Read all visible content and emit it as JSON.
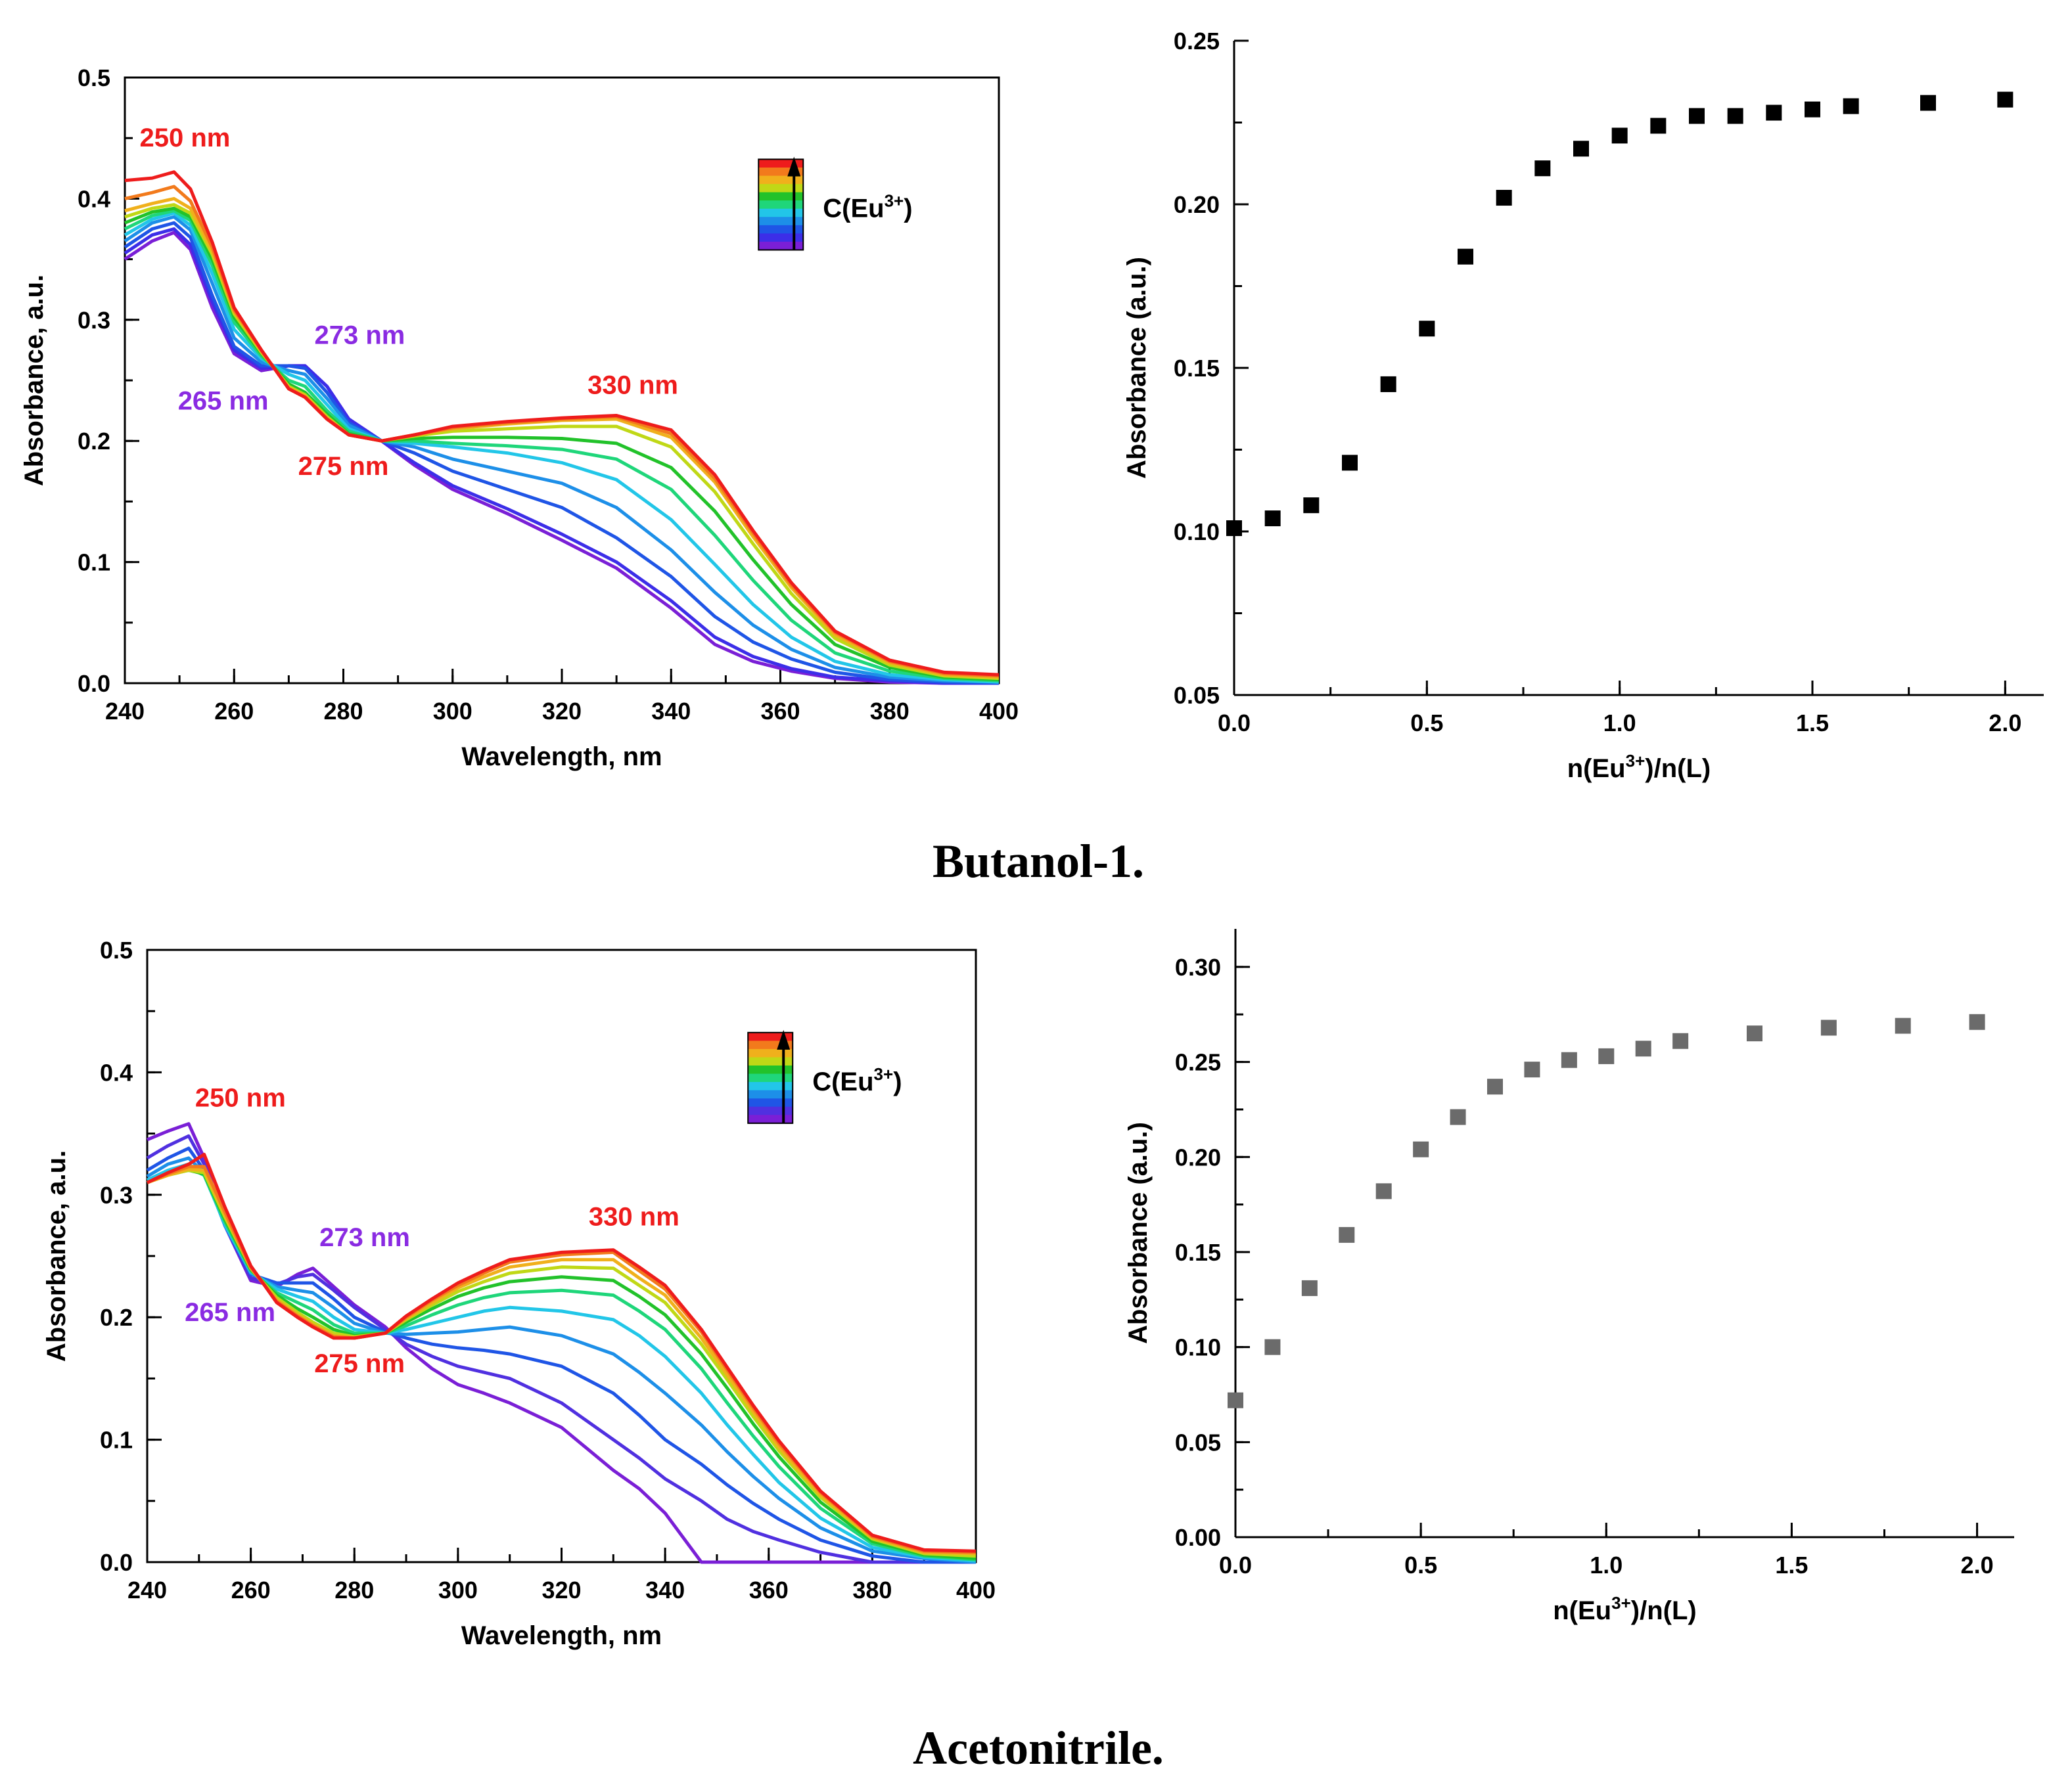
{
  "captions": [
    "Butanol-1.",
    "Acetonitrile."
  ],
  "chart_data": [
    {
      "id": "butanol-spectra",
      "type": "line",
      "xlabel": "Wavelength, nm",
      "ylabel": "Absorbance, a.u.",
      "xlim": [
        240,
        400
      ],
      "ylim": [
        0,
        0.5
      ],
      "xticks": [
        240,
        260,
        280,
        300,
        320,
        340,
        360,
        380,
        400
      ],
      "yticks": [
        0.0,
        0.1,
        0.2,
        0.3,
        0.4,
        0.5
      ],
      "legend": {
        "label": "C(Eu",
        "sup": "3+",
        "suffix": ")",
        "position": "top-right"
      },
      "annotations": [
        {
          "text": "250 nm",
          "x": 251,
          "y": 0.443,
          "color": "#ee1c1c"
        },
        {
          "text": "273 nm",
          "x": 283,
          "y": 0.28,
          "color": "#8a2be2"
        },
        {
          "text": "265 nm",
          "x": 258,
          "y": 0.226,
          "color": "#8a2be2"
        },
        {
          "text": "330 nm",
          "x": 333,
          "y": 0.239,
          "color": "#ee1c1c"
        },
        {
          "text": "275 nm",
          "x": 280,
          "y": 0.172,
          "color": "#ee1c1c"
        }
      ],
      "x": [
        240,
        245,
        249,
        252,
        256,
        260,
        265,
        270,
        273,
        277,
        281,
        287,
        293,
        300,
        310,
        320,
        330,
        340,
        348,
        355,
        362,
        370,
        380,
        390,
        400
      ],
      "series": [
        {
          "name": "c1",
          "color": "#7a1fd6",
          "values": [
            0.35,
            0.365,
            0.372,
            0.358,
            0.31,
            0.272,
            0.258,
            0.262,
            0.262,
            0.245,
            0.218,
            0.2,
            0.18,
            0.16,
            0.14,
            0.118,
            0.095,
            0.062,
            0.032,
            0.018,
            0.01,
            0.004,
            0.001,
            0.0,
            0.0
          ]
        },
        {
          "name": "c2",
          "color": "#3c2ee8",
          "values": [
            0.355,
            0.37,
            0.375,
            0.362,
            0.315,
            0.275,
            0.26,
            0.262,
            0.262,
            0.245,
            0.218,
            0.2,
            0.182,
            0.163,
            0.144,
            0.123,
            0.1,
            0.068,
            0.038,
            0.022,
            0.012,
            0.005,
            0.002,
            0.0,
            0.0
          ]
        },
        {
          "name": "c3",
          "color": "#1f55e6",
          "values": [
            0.36,
            0.375,
            0.38,
            0.368,
            0.32,
            0.278,
            0.262,
            0.262,
            0.26,
            0.24,
            0.215,
            0.2,
            0.19,
            0.175,
            0.16,
            0.145,
            0.12,
            0.088,
            0.055,
            0.034,
            0.02,
            0.009,
            0.003,
            0.001,
            0.0
          ]
        },
        {
          "name": "c4",
          "color": "#1d8fe8",
          "values": [
            0.365,
            0.38,
            0.385,
            0.374,
            0.33,
            0.285,
            0.265,
            0.258,
            0.255,
            0.235,
            0.213,
            0.2,
            0.195,
            0.185,
            0.175,
            0.165,
            0.145,
            0.11,
            0.075,
            0.048,
            0.028,
            0.013,
            0.005,
            0.002,
            0.001
          ]
        },
        {
          "name": "c5",
          "color": "#22c6e8",
          "values": [
            0.37,
            0.383,
            0.388,
            0.378,
            0.338,
            0.292,
            0.268,
            0.255,
            0.25,
            0.23,
            0.21,
            0.2,
            0.198,
            0.195,
            0.19,
            0.182,
            0.168,
            0.135,
            0.098,
            0.065,
            0.038,
            0.018,
            0.007,
            0.003,
            0.001
          ]
        },
        {
          "name": "c6",
          "color": "#1fd67a",
          "values": [
            0.375,
            0.386,
            0.39,
            0.382,
            0.345,
            0.298,
            0.27,
            0.25,
            0.245,
            0.225,
            0.208,
            0.2,
            0.2,
            0.198,
            0.196,
            0.193,
            0.185,
            0.16,
            0.122,
            0.085,
            0.052,
            0.025,
            0.01,
            0.004,
            0.002
          ]
        },
        {
          "name": "c7",
          "color": "#22c22a",
          "values": [
            0.38,
            0.389,
            0.392,
            0.385,
            0.35,
            0.302,
            0.272,
            0.247,
            0.24,
            0.222,
            0.206,
            0.2,
            0.202,
            0.203,
            0.203,
            0.202,
            0.198,
            0.178,
            0.142,
            0.102,
            0.065,
            0.032,
            0.013,
            0.005,
            0.003
          ]
        },
        {
          "name": "c8",
          "color": "#c0d816",
          "values": [
            0.385,
            0.392,
            0.395,
            0.388,
            0.354,
            0.305,
            0.273,
            0.245,
            0.238,
            0.22,
            0.205,
            0.2,
            0.204,
            0.208,
            0.21,
            0.212,
            0.212,
            0.195,
            0.158,
            0.115,
            0.074,
            0.037,
            0.015,
            0.006,
            0.004
          ]
        },
        {
          "name": "c9",
          "color": "#f0b01c",
          "values": [
            0.39,
            0.396,
            0.4,
            0.392,
            0.357,
            0.307,
            0.274,
            0.244,
            0.237,
            0.219,
            0.205,
            0.2,
            0.205,
            0.21,
            0.214,
            0.217,
            0.218,
            0.203,
            0.166,
            0.121,
            0.079,
            0.04,
            0.017,
            0.007,
            0.005
          ]
        },
        {
          "name": "c10",
          "color": "#f27a1c",
          "values": [
            0.4,
            0.405,
            0.41,
            0.398,
            0.36,
            0.308,
            0.275,
            0.243,
            0.236,
            0.218,
            0.205,
            0.2,
            0.205,
            0.211,
            0.215,
            0.218,
            0.22,
            0.206,
            0.169,
            0.124,
            0.081,
            0.042,
            0.018,
            0.008,
            0.006
          ]
        },
        {
          "name": "c11",
          "color": "#ee1c1c",
          "values": [
            0.415,
            0.417,
            0.422,
            0.408,
            0.364,
            0.31,
            0.275,
            0.243,
            0.236,
            0.218,
            0.205,
            0.2,
            0.205,
            0.212,
            0.216,
            0.219,
            0.221,
            0.209,
            0.172,
            0.126,
            0.083,
            0.043,
            0.019,
            0.009,
            0.007
          ]
        }
      ]
    },
    {
      "id": "butanol-titration",
      "type": "scatter",
      "xlabel": "n(Eu",
      "xlabel_sup": "3+",
      "xlabel_suffix": ")/n(L)",
      "ylabel": "Absorbance (a.u.)",
      "xlim": [
        0,
        2.1
      ],
      "ylim": [
        0.05,
        0.25
      ],
      "xticks": [
        0.0,
        0.5,
        1.0,
        1.5,
        2.0
      ],
      "yticks": [
        0.05,
        0.1,
        0.15,
        0.2,
        0.25
      ],
      "marker_color": "#000000",
      "x": [
        0.0,
        0.1,
        0.2,
        0.3,
        0.4,
        0.5,
        0.6,
        0.7,
        0.8,
        0.9,
        1.0,
        1.1,
        1.2,
        1.3,
        1.4,
        1.5,
        1.6,
        1.8,
        2.0
      ],
      "y": [
        0.101,
        0.104,
        0.108,
        0.121,
        0.145,
        0.162,
        0.184,
        0.202,
        0.211,
        0.217,
        0.221,
        0.224,
        0.227,
        0.227,
        0.228,
        0.229,
        0.23,
        0.231,
        0.232
      ]
    },
    {
      "id": "acetonitrile-spectra",
      "type": "line",
      "xlabel": "Wavelength, nm",
      "ylabel": "Absorbance, a.u.",
      "xlim": [
        240,
        400
      ],
      "ylim": [
        0,
        0.5
      ],
      "xticks": [
        240,
        260,
        280,
        300,
        320,
        340,
        360,
        380,
        400
      ],
      "yticks": [
        0.0,
        0.1,
        0.2,
        0.3,
        0.4,
        0.5
      ],
      "legend": {
        "label": "C(Eu",
        "sup": "3+",
        "suffix": ")",
        "position": "top-right"
      },
      "annotations": [
        {
          "text": "250 nm",
          "x": 258,
          "y": 0.372,
          "color": "#ee1c1c"
        },
        {
          "text": "273 nm",
          "x": 282,
          "y": 0.258,
          "color": "#8a2be2"
        },
        {
          "text": "265 nm",
          "x": 256,
          "y": 0.197,
          "color": "#8a2be2"
        },
        {
          "text": "330 nm",
          "x": 334,
          "y": 0.275,
          "color": "#ee1c1c"
        },
        {
          "text": "275 nm",
          "x": 281,
          "y": 0.155,
          "color": "#ee1c1c"
        }
      ],
      "x": [
        240,
        244,
        248,
        251,
        255,
        260,
        265,
        269,
        272,
        276,
        280,
        286,
        290,
        295,
        300,
        305,
        310,
        320,
        330,
        335,
        340,
        347,
        352,
        357,
        362,
        370,
        380,
        390,
        400
      ],
      "series": [
        {
          "name": "c1",
          "color": "#7a1fd6",
          "values": [
            0.345,
            0.352,
            0.358,
            0.33,
            0.275,
            0.23,
            0.225,
            0.235,
            0.24,
            0.225,
            0.21,
            0.192,
            0.175,
            0.158,
            0.145,
            0.138,
            0.13,
            0.11,
            0.075,
            0.06,
            0.04,
            0.0,
            0.0,
            0.0,
            0.0,
            0.0,
            0.0,
            0.0,
            0.0
          ]
        },
        {
          "name": "c2",
          "color": "#5030e0",
          "values": [
            0.33,
            0.34,
            0.348,
            0.325,
            0.275,
            0.232,
            0.227,
            0.233,
            0.235,
            0.222,
            0.208,
            0.19,
            0.178,
            0.168,
            0.16,
            0.155,
            0.15,
            0.13,
            0.1,
            0.085,
            0.068,
            0.05,
            0.035,
            0.025,
            0.018,
            0.008,
            0.0,
            0.0,
            0.0
          ]
        },
        {
          "name": "c3",
          "color": "#1f55e6",
          "values": [
            0.32,
            0.33,
            0.338,
            0.32,
            0.275,
            0.235,
            0.228,
            0.228,
            0.228,
            0.215,
            0.2,
            0.188,
            0.183,
            0.178,
            0.175,
            0.173,
            0.17,
            0.16,
            0.138,
            0.12,
            0.1,
            0.08,
            0.063,
            0.048,
            0.035,
            0.018,
            0.005,
            0.0,
            0.0
          ]
        },
        {
          "name": "c4",
          "color": "#1d8fe8",
          "values": [
            0.315,
            0.325,
            0.33,
            0.318,
            0.275,
            0.236,
            0.225,
            0.222,
            0.22,
            0.208,
            0.195,
            0.187,
            0.186,
            0.187,
            0.188,
            0.19,
            0.192,
            0.185,
            0.17,
            0.155,
            0.138,
            0.112,
            0.09,
            0.07,
            0.052,
            0.028,
            0.009,
            0.003,
            0.0
          ]
        },
        {
          "name": "c5",
          "color": "#22c6e8",
          "values": [
            0.312,
            0.32,
            0.325,
            0.316,
            0.276,
            0.237,
            0.223,
            0.217,
            0.213,
            0.2,
            0.19,
            0.187,
            0.19,
            0.195,
            0.2,
            0.205,
            0.208,
            0.205,
            0.198,
            0.185,
            0.168,
            0.138,
            0.112,
            0.088,
            0.065,
            0.036,
            0.012,
            0.004,
            0.001
          ]
        },
        {
          "name": "c6",
          "color": "#1fd67a",
          "values": [
            0.31,
            0.318,
            0.322,
            0.316,
            0.278,
            0.238,
            0.22,
            0.212,
            0.206,
            0.194,
            0.187,
            0.187,
            0.193,
            0.202,
            0.21,
            0.216,
            0.22,
            0.222,
            0.218,
            0.205,
            0.19,
            0.158,
            0.13,
            0.103,
            0.078,
            0.044,
            0.015,
            0.005,
            0.002
          ]
        },
        {
          "name": "c7",
          "color": "#22c22a",
          "values": [
            0.31,
            0.317,
            0.32,
            0.317,
            0.28,
            0.239,
            0.218,
            0.207,
            0.2,
            0.19,
            0.185,
            0.187,
            0.196,
            0.207,
            0.217,
            0.224,
            0.229,
            0.233,
            0.23,
            0.217,
            0.202,
            0.17,
            0.142,
            0.113,
            0.086,
            0.049,
            0.017,
            0.006,
            0.003
          ]
        },
        {
          "name": "c8",
          "color": "#c0d816",
          "values": [
            0.31,
            0.316,
            0.32,
            0.318,
            0.282,
            0.24,
            0.216,
            0.204,
            0.196,
            0.187,
            0.184,
            0.187,
            0.198,
            0.21,
            0.221,
            0.229,
            0.236,
            0.241,
            0.24,
            0.226,
            0.212,
            0.178,
            0.149,
            0.119,
            0.091,
            0.053,
            0.019,
            0.007,
            0.005
          ]
        },
        {
          "name": "c9",
          "color": "#f0b01c",
          "values": [
            0.31,
            0.316,
            0.321,
            0.32,
            0.284,
            0.24,
            0.214,
            0.202,
            0.194,
            0.185,
            0.183,
            0.187,
            0.199,
            0.212,
            0.224,
            0.233,
            0.241,
            0.247,
            0.247,
            0.232,
            0.218,
            0.183,
            0.153,
            0.123,
            0.094,
            0.055,
            0.02,
            0.008,
            0.007
          ]
        },
        {
          "name": "c10",
          "color": "#f27a1c",
          "values": [
            0.31,
            0.317,
            0.323,
            0.323,
            0.286,
            0.241,
            0.213,
            0.201,
            0.193,
            0.184,
            0.183,
            0.187,
            0.2,
            0.214,
            0.226,
            0.236,
            0.245,
            0.251,
            0.253,
            0.238,
            0.223,
            0.188,
            0.157,
            0.126,
            0.097,
            0.057,
            0.021,
            0.009,
            0.008
          ]
        },
        {
          "name": "c11",
          "color": "#ee1c1c",
          "values": [
            0.31,
            0.318,
            0.325,
            0.333,
            0.29,
            0.242,
            0.212,
            0.2,
            0.192,
            0.183,
            0.183,
            0.187,
            0.201,
            0.215,
            0.228,
            0.238,
            0.247,
            0.253,
            0.255,
            0.241,
            0.226,
            0.19,
            0.159,
            0.128,
            0.099,
            0.058,
            0.022,
            0.01,
            0.009
          ]
        }
      ]
    },
    {
      "id": "acetonitrile-titration",
      "type": "scatter",
      "xlabel": "n(Eu",
      "xlabel_sup": "3+",
      "xlabel_suffix": ")/n(L)",
      "ylabel": "Absorbance (a.u.)",
      "xlim": [
        0,
        2.1
      ],
      "ylim": [
        0,
        0.32
      ],
      "xticks": [
        0.0,
        0.5,
        1.0,
        1.5,
        2.0
      ],
      "yticks": [
        0.0,
        0.05,
        0.1,
        0.15,
        0.2,
        0.25,
        0.3
      ],
      "marker_color": "#6b6b6b",
      "x": [
        0.0,
        0.1,
        0.2,
        0.3,
        0.4,
        0.5,
        0.6,
        0.7,
        0.8,
        0.9,
        1.0,
        1.1,
        1.2,
        1.4,
        1.6,
        1.8,
        2.0
      ],
      "y": [
        0.072,
        0.1,
        0.131,
        0.159,
        0.182,
        0.204,
        0.221,
        0.237,
        0.246,
        0.251,
        0.253,
        0.257,
        0.261,
        0.265,
        0.268,
        0.269,
        0.271
      ]
    }
  ]
}
